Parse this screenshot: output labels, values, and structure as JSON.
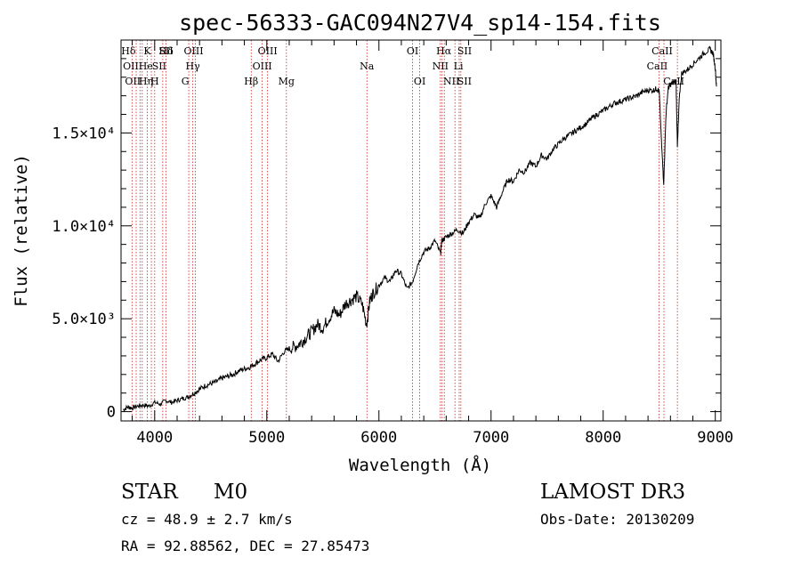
{
  "chart_data": {
    "type": "line",
    "title": "spec-56333-GAC094N27V4_sp14-154.fits",
    "xlabel": "Wavelength (Å)",
    "ylabel": "Flux (relative)",
    "xlim": [
      3700,
      9050
    ],
    "ylim": [
      -500,
      20000
    ],
    "x_ticks": [
      {
        "value": 4000,
        "label": "4000"
      },
      {
        "value": 5000,
        "label": "5000"
      },
      {
        "value": 6000,
        "label": "6000"
      },
      {
        "value": 7000,
        "label": "7000"
      },
      {
        "value": 8000,
        "label": "8000"
      },
      {
        "value": 9000,
        "label": "9000"
      }
    ],
    "y_ticks": [
      {
        "value": 0,
        "label": "0"
      },
      {
        "value": 5000,
        "label": "5.0×10³"
      },
      {
        "value": 10000,
        "label": "1.0×10⁴"
      },
      {
        "value": 15000,
        "label": "1.5×10⁴"
      }
    ],
    "series": [
      {
        "name": "flux",
        "color": "#000000",
        "x": [
          3720,
          3760,
          3800,
          3850,
          3900,
          3950,
          4000,
          4050,
          4100,
          4150,
          4200,
          4250,
          4300,
          4350,
          4400,
          4450,
          4500,
          4550,
          4600,
          4650,
          4700,
          4750,
          4800,
          4850,
          4900,
          4950,
          5000,
          5050,
          5100,
          5150,
          5200,
          5250,
          5300,
          5350,
          5400,
          5450,
          5500,
          5550,
          5600,
          5650,
          5700,
          5750,
          5800,
          5850,
          5890,
          5920,
          5950,
          6000,
          6050,
          6100,
          6150,
          6200,
          6250,
          6300,
          6350,
          6400,
          6450,
          6500,
          6550,
          6560,
          6600,
          6650,
          6700,
          6750,
          6800,
          6850,
          6900,
          6950,
          7000,
          7050,
          7100,
          7150,
          7200,
          7250,
          7300,
          7350,
          7400,
          7450,
          7500,
          7550,
          7600,
          7650,
          7700,
          7750,
          7800,
          7850,
          7900,
          7950,
          8000,
          8050,
          8100,
          8150,
          8200,
          8250,
          8300,
          8350,
          8400,
          8450,
          8480,
          8500,
          8520,
          8540,
          8560,
          8580,
          8600,
          8620,
          8650,
          8662,
          8680,
          8700,
          8750,
          8800,
          8850,
          8900,
          8950,
          8980,
          9000,
          9010
        ],
        "y": [
          100,
          250,
          200,
          300,
          350,
          300,
          500,
          400,
          600,
          500,
          600,
          700,
          800,
          1000,
          1200,
          1400,
          1500,
          1600,
          1800,
          1900,
          2000,
          2200,
          2300,
          2400,
          2600,
          2800,
          2900,
          3100,
          2700,
          3200,
          3400,
          3500,
          3700,
          4000,
          4300,
          4700,
          4500,
          5000,
          5400,
          5200,
          5800,
          6000,
          6200,
          5800,
          4700,
          6000,
          6400,
          6800,
          7200,
          7000,
          7600,
          7400,
          6600,
          7000,
          8000,
          8600,
          8800,
          9200,
          8500,
          9200,
          9400,
          9600,
          9800,
          9600,
          10200,
          10600,
          10400,
          11200,
          11600,
          11000,
          11800,
          12500,
          12400,
          13000,
          12900,
          13400,
          13200,
          13800,
          13600,
          14100,
          14400,
          14700,
          14900,
          15100,
          15300,
          15500,
          15800,
          16000,
          16200,
          16400,
          16600,
          16700,
          16800,
          16900,
          17000,
          17200,
          17300,
          17300,
          17400,
          17200,
          14500,
          12300,
          16000,
          17400,
          17600,
          17700,
          17800,
          14200,
          17000,
          18200,
          18400,
          18700,
          19000,
          19300,
          19500,
          19300,
          18500,
          17500
        ]
      }
    ],
    "lines": [
      {
        "x": 3798,
        "labels": [
          "Hδ"
        ],
        "row": 0,
        "tx": -4
      },
      {
        "x": 3835,
        "labels": [
          "OII"
        ],
        "row": 1,
        "tx": -6
      },
      {
        "x": 3869,
        "labels": [
          "OII"
        ],
        "row": 2,
        "tx": -8
      },
      {
        "x": 3889,
        "labels": [
          "He"
        ],
        "row": 1,
        "tx": 4
      },
      {
        "x": 3934,
        "labels": [
          "K"
        ],
        "row": 0,
        "tx": 0
      },
      {
        "x": 3970,
        "labels": [
          "Hη"
        ],
        "row": 2,
        "tx": -6
      },
      {
        "x": 4000,
        "labels": [
          "H"
        ],
        "row": 2,
        "tx": 0
      },
      {
        "x": 4072,
        "labels": [
          "SII"
        ],
        "row": 1,
        "tx": -4
      },
      {
        "x": 4102,
        "labels": [
          "Hδ",
          "SII"
        ],
        "row": 0,
        "tx": 0
      },
      {
        "x": 4304,
        "labels": [
          "G"
        ],
        "row": 2,
        "tx": -4
      },
      {
        "x": 4340,
        "labels": [
          "Hγ"
        ],
        "row": 1,
        "tx": 0
      },
      {
        "x": 4363,
        "labels": [
          "OIII"
        ],
        "row": 0,
        "tx": -2
      },
      {
        "x": 4861,
        "labels": [
          "Hβ"
        ],
        "row": 2,
        "tx": 0
      },
      {
        "x": 4959,
        "labels": [
          "OIII"
        ],
        "row": 1,
        "tx": 0
      },
      {
        "x": 5007,
        "labels": [
          "OIII"
        ],
        "row": 0,
        "tx": 0
      },
      {
        "x": 5175,
        "labels": [
          "Mg"
        ],
        "row": 2,
        "tx": 0
      },
      {
        "x": 5893,
        "labels": [
          "Na"
        ],
        "row": 1,
        "tx": 0
      },
      {
        "x": 6300,
        "labels": [
          "OI"
        ],
        "row": 0,
        "tx": 0
      },
      {
        "x": 6364,
        "labels": [
          "OI"
        ],
        "row": 2,
        "tx": 0
      },
      {
        "x": 6548,
        "labels": [
          "NII"
        ],
        "row": 1,
        "tx": 0
      },
      {
        "x": 6563,
        "labels": [
          "Hα"
        ],
        "row": 0,
        "tx": 2
      },
      {
        "x": 6583,
        "labels": [
          "NII"
        ],
        "row": 2,
        "tx": 8
      },
      {
        "x": 6678,
        "labels": [
          "Li"
        ],
        "row": 1,
        "tx": 4
      },
      {
        "x": 6716,
        "labels": [
          "SII"
        ],
        "row": 0,
        "tx": 6
      },
      {
        "x": 6731,
        "labels": [
          "SII"
        ],
        "row": 2,
        "tx": 4
      },
      {
        "x": 8498,
        "labels": [
          "CaII"
        ],
        "row": 1,
        "tx": -2
      },
      {
        "x": 8542,
        "labels": [
          "CaII"
        ],
        "row": 0,
        "tx": -2
      },
      {
        "x": 8662,
        "labels": [
          "CaII"
        ],
        "row": 2,
        "tx": -4
      }
    ]
  },
  "info": {
    "class": "STAR",
    "subclass": "M0",
    "survey": "LAMOST DR3",
    "cz": "cz = 48.9 ± 2.7 km/s",
    "obs_date": "Obs-Date: 20130209",
    "radec": "RA =  92.88562, DEC =  27.85473"
  },
  "colors": {
    "line_marker": "#cc2222",
    "spectrum": "#000000",
    "axis": "#000000"
  }
}
